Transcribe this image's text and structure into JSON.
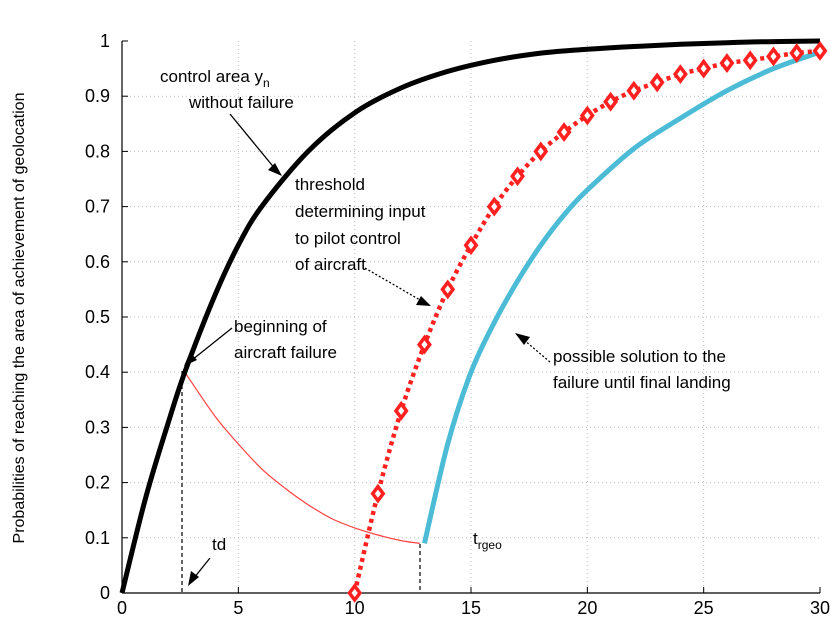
{
  "chart_data": {
    "type": "line",
    "title": "",
    "xlabel": "",
    "ylabel": "Probabilities of reaching the area of achievement of geolocation",
    "xlim": [
      0,
      30
    ],
    "ylim": [
      0,
      1
    ],
    "xticks": [
      0,
      5,
      10,
      15,
      20,
      25,
      30
    ],
    "yticks": [
      0,
      0.1,
      0.2,
      0.3,
      0.4,
      0.5,
      0.6,
      0.7,
      0.8,
      0.9,
      1
    ],
    "grid": true,
    "series": [
      {
        "color": "#000000",
        "style": "solid-thick",
        "x": [
          0,
          1,
          2,
          2.7,
          4,
          5,
          6,
          8,
          10,
          12,
          14,
          16,
          18,
          20,
          22,
          24,
          26,
          28,
          30
        ],
        "y": [
          0,
          0.17,
          0.31,
          0.4,
          0.54,
          0.63,
          0.7,
          0.8,
          0.87,
          0.915,
          0.945,
          0.965,
          0.978,
          0.985,
          0.99,
          0.994,
          0.997,
          0.999,
          1.0
        ]
      },
      {
        "color": "#ff2020",
        "style": "dotted-diamond",
        "x": [
          10,
          11,
          12,
          13,
          14,
          15,
          16,
          17,
          18,
          19,
          20,
          21,
          22,
          23,
          24,
          25,
          26,
          27,
          28,
          29,
          30
        ],
        "y": [
          0,
          0.18,
          0.33,
          0.45,
          0.55,
          0.63,
          0.7,
          0.755,
          0.8,
          0.835,
          0.865,
          0.89,
          0.91,
          0.925,
          0.94,
          0.95,
          0.96,
          0.965,
          0.972,
          0.978,
          0.982
        ]
      },
      {
        "color": "#4cbcd6",
        "style": "solid-thick",
        "x": [
          13,
          14,
          15,
          16,
          17,
          18,
          19,
          20,
          22,
          24,
          26,
          28,
          30
        ],
        "y": [
          0.09,
          0.27,
          0.4,
          0.49,
          0.565,
          0.63,
          0.685,
          0.73,
          0.805,
          0.86,
          0.91,
          0.95,
          0.98
        ]
      },
      {
        "color": "#ff4040",
        "style": "solid-thin",
        "x": [
          2.7,
          4,
          5,
          6,
          7,
          8,
          9,
          10,
          11,
          12,
          12.8
        ],
        "y": [
          0.4,
          0.32,
          0.27,
          0.225,
          0.19,
          0.16,
          0.135,
          0.118,
          0.105,
          0.095,
          0.09
        ]
      }
    ],
    "annotations": [
      {
        "id": "control",
        "lines": [
          "control area y",
          "without failure"
        ],
        "subscript": "n"
      },
      {
        "id": "threshold",
        "lines": [
          "threshold",
          "determining input",
          "to pilot control",
          "of aircraft"
        ]
      },
      {
        "id": "beginning",
        "lines": [
          "beginning of",
          "aircraft failure"
        ]
      },
      {
        "id": "possible",
        "lines": [
          "possible solution to the",
          "failure until final landing"
        ]
      },
      {
        "id": "td",
        "text": "td"
      },
      {
        "id": "trgeo",
        "text": "t",
        "subscript": "rgeo"
      }
    ]
  }
}
